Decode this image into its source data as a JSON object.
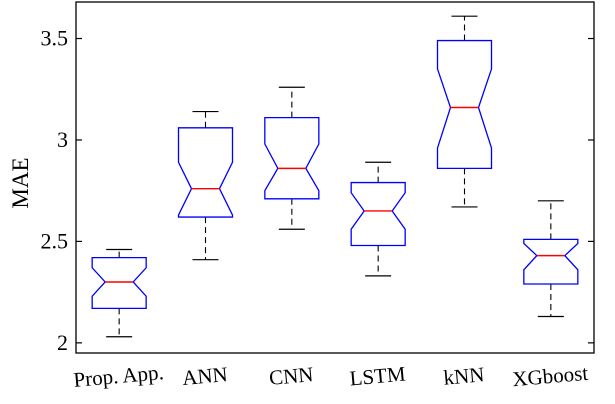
{
  "chart_data": {
    "type": "boxplot",
    "notched": true,
    "ylabel": "MAE",
    "ylim": [
      1.95,
      3.68
    ],
    "yticks": [
      2,
      2.5,
      3,
      3.5
    ],
    "ytick_labels": [
      "2",
      "2.5",
      "3",
      "3.5"
    ],
    "categories": [
      "Prop. App.",
      "ANN",
      "CNN",
      "LSTM",
      "kNN",
      "XGboost"
    ],
    "boxes": [
      {
        "category": "Prop. App.",
        "whisker_low": 2.03,
        "q1": 2.17,
        "median": 2.3,
        "q3": 2.42,
        "whisker_high": 2.46,
        "notch_low": 2.23,
        "notch_high": 2.37
      },
      {
        "category": "ANN",
        "whisker_low": 2.41,
        "q1": 2.62,
        "median": 2.76,
        "q3": 3.06,
        "whisker_high": 3.14,
        "notch_low": 2.63,
        "notch_high": 2.89
      },
      {
        "category": "CNN",
        "whisker_low": 2.56,
        "q1": 2.71,
        "median": 2.86,
        "q3": 3.11,
        "whisker_high": 3.26,
        "notch_low": 2.75,
        "notch_high": 2.98
      },
      {
        "category": "LSTM",
        "whisker_low": 2.33,
        "q1": 2.48,
        "median": 2.65,
        "q3": 2.79,
        "whisker_high": 2.89,
        "notch_low": 2.56,
        "notch_high": 2.74
      },
      {
        "category": "kNN",
        "whisker_low": 2.67,
        "q1": 2.86,
        "median": 3.16,
        "q3": 3.49,
        "whisker_high": 3.61,
        "notch_low": 2.96,
        "notch_high": 3.35
      },
      {
        "category": "XGboost",
        "whisker_low": 2.13,
        "q1": 2.29,
        "median": 2.43,
        "q3": 2.51,
        "whisker_high": 2.7,
        "notch_low": 2.36,
        "notch_high": 2.49
      }
    ],
    "colors": {
      "box": "#0000ff",
      "median": "#ff0000",
      "whisker": "#000000",
      "axes": "#000000"
    },
    "grid": false
  }
}
